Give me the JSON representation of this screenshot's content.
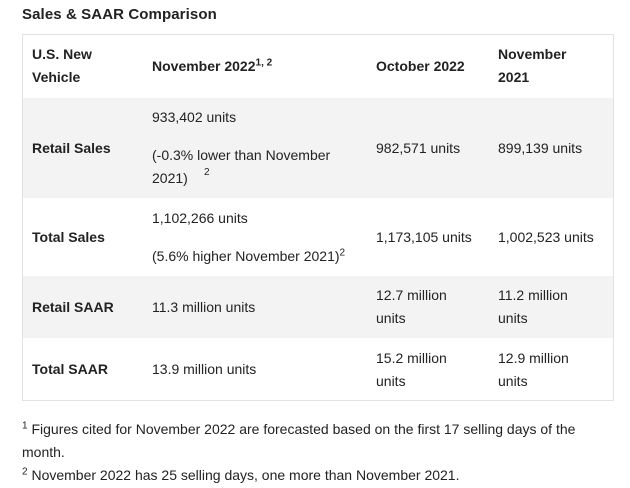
{
  "title": "Sales & SAAR Comparison",
  "header": {
    "col1": "U.S. New Vehicle",
    "col2": "November 2022",
    "col2_sup": "1, 2",
    "col3": "October 2022",
    "col4": "November 2021"
  },
  "rows": [
    {
      "label": "Retail Sales",
      "nov2022_value": "933,402 units",
      "nov2022_note": "(-0.3% lower than November 2021)",
      "nov2022_note_sup": "2",
      "oct2022": "982,571 units",
      "nov2021": "899,139 units"
    },
    {
      "label": "Total Sales",
      "nov2022_value": "1,102,266 units",
      "nov2022_note": "(5.6% higher November 2021)",
      "nov2022_note_sup": "2",
      "oct2022": "1,173,105 units",
      "nov2021": "1,002,523 units"
    },
    {
      "label": "Retail SAAR",
      "nov2022_value": "11.3 million units",
      "oct2022": "12.7 million units",
      "nov2021": "11.2 million units"
    },
    {
      "label": "Total SAAR",
      "nov2022_value": "13.9 million units",
      "oct2022": "15.2 million units",
      "nov2021": "12.9 million units"
    }
  ],
  "footnotes": [
    {
      "marker": "1",
      "text": "Figures cited for November 2022 are forecasted based on the first 17 selling days of the month."
    },
    {
      "marker": "2",
      "text": "November 2022 has 25 selling days, one more than November 2021."
    }
  ]
}
